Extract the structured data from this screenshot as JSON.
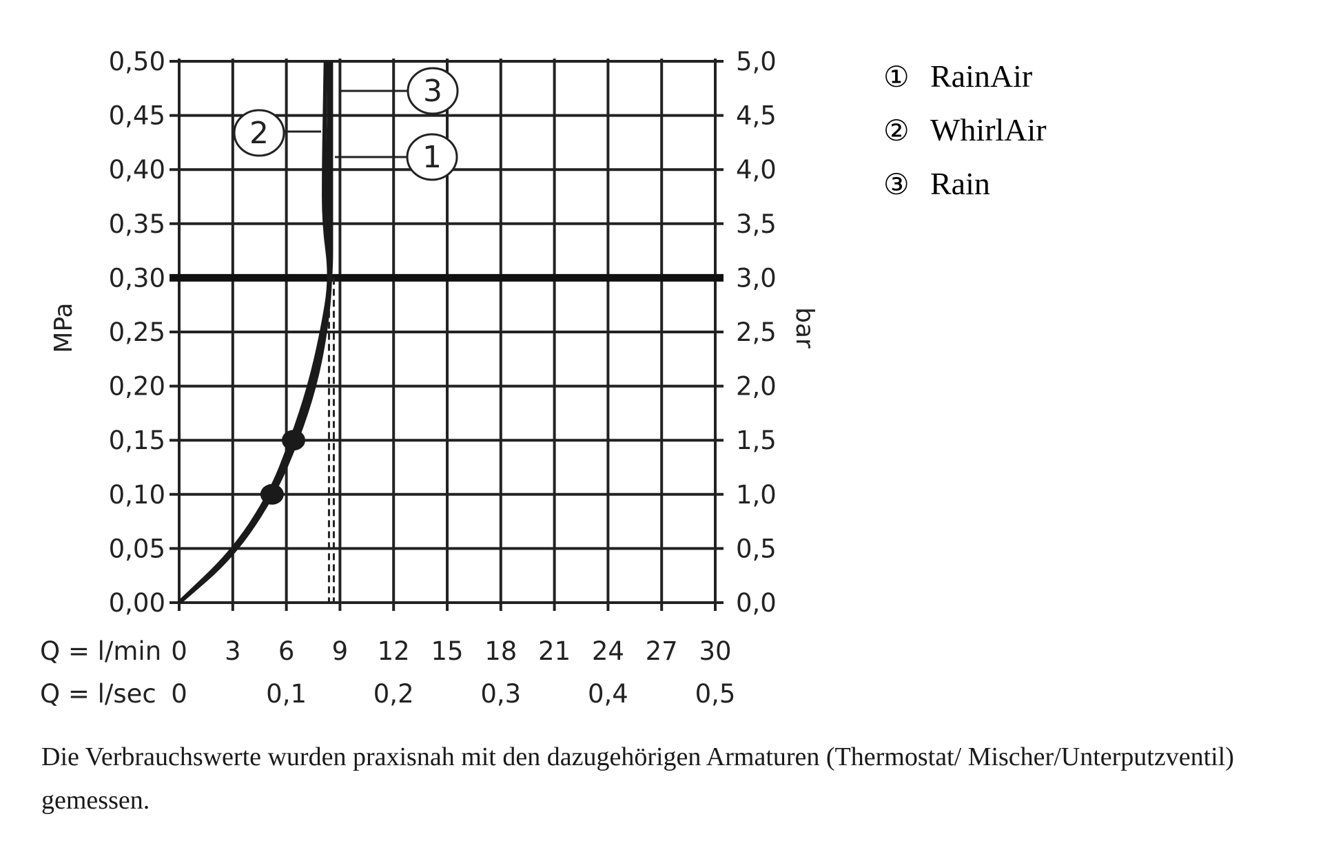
{
  "chart_data": {
    "type": "line",
    "xlabel": "Q = l/min",
    "x2label": "Q = l/sec",
    "ylabel": "MPa",
    "y2label": "bar",
    "xlim": [
      0,
      30
    ],
    "ylim": [
      0,
      0.5
    ],
    "y2lim": [
      0,
      5.0
    ],
    "grid": true,
    "x_ticks": [
      "0",
      "3",
      "6",
      "9",
      "12",
      "15",
      "18",
      "21",
      "24",
      "27",
      "30"
    ],
    "x2_ticks": [
      {
        "q": 0,
        "label": "0"
      },
      {
        "q": 6,
        "label": "0,1"
      },
      {
        "q": 12,
        "label": "0,2"
      },
      {
        "q": 18,
        "label": "0,3"
      },
      {
        "q": 24,
        "label": "0,4"
      },
      {
        "q": 30,
        "label": "0,5"
      }
    ],
    "y_ticks": [
      "0,00",
      "0,05",
      "0,10",
      "0,15",
      "0,20",
      "0,25",
      "0,30",
      "0,35",
      "0,40",
      "0,45",
      "0,50"
    ],
    "y2_ticks": [
      "0,0",
      "0,5",
      "1,0",
      "1,5",
      "2,0",
      "2,5",
      "3,0",
      "3,5",
      "4,0",
      "4,5",
      "5,0"
    ],
    "reference_line_y": 0.3,
    "dashed_line_x": 8.5,
    "series": [
      {
        "name": "RainAir",
        "marker": "1",
        "points": [
          [
            0,
            0
          ],
          [
            3,
            0.043
          ],
          [
            5.3,
            0.1
          ],
          [
            6.6,
            0.15
          ],
          [
            7.6,
            0.2
          ],
          [
            8.2,
            0.25
          ],
          [
            8.5,
            0.3
          ],
          [
            8.3,
            0.35
          ],
          [
            8.3,
            0.4
          ],
          [
            8.4,
            0.45
          ],
          [
            8.4,
            0.5
          ]
        ]
      },
      {
        "name": "WhirlAir",
        "marker": "2",
        "points": [
          [
            0,
            0
          ],
          [
            3,
            0.047
          ],
          [
            5.1,
            0.1
          ],
          [
            6.3,
            0.15
          ],
          [
            7.3,
            0.2
          ],
          [
            8.0,
            0.25
          ],
          [
            8.5,
            0.3
          ],
          [
            8.1,
            0.35
          ],
          [
            8.1,
            0.4
          ],
          [
            8.15,
            0.45
          ],
          [
            8.2,
            0.5
          ]
        ]
      },
      {
        "name": "Rain",
        "marker": "3",
        "points": [
          [
            0,
            0
          ],
          [
            3,
            0.045
          ],
          [
            5.2,
            0.1
          ],
          [
            6.5,
            0.15
          ],
          [
            7.5,
            0.2
          ],
          [
            8.1,
            0.25
          ],
          [
            8.5,
            0.3
          ],
          [
            8.5,
            0.35
          ],
          [
            8.5,
            0.4
          ],
          [
            8.5,
            0.45
          ],
          [
            8.5,
            0.5
          ]
        ]
      }
    ],
    "highlight_points": [
      [
        5.2,
        0.1
      ],
      [
        6.4,
        0.15
      ]
    ],
    "legend": [
      {
        "symbol": "①",
        "label": "RainAir"
      },
      {
        "symbol": "②",
        "label": "WhirlAir"
      },
      {
        "symbol": "③",
        "label": "Rain"
      }
    ],
    "legend_position": "right",
    "callouts": [
      "1",
      "2",
      "3"
    ]
  },
  "caption": "Die Verbrauchswerte wurden praxisnah mit den dazugehörigen Armaturen (Thermostat/ Mischer/Unterputzventil) gemessen."
}
